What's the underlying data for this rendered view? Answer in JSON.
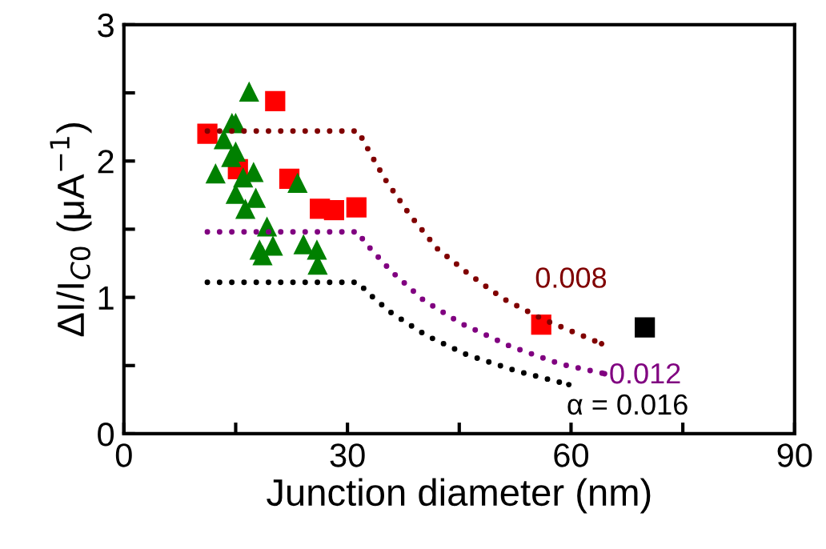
{
  "chart_data": {
    "type": "scatter",
    "xlabel": "Junction diameter (nm)",
    "ylabel": "ΔI/I$_{C0}$ (μA$^{−1}$)",
    "xlim": [
      0,
      90
    ],
    "ylim": [
      0,
      3
    ],
    "xticks": [
      0,
      {
        "value": 15,
        "label": null
      },
      30,
      {
        "value": 45,
        "label": null
      },
      60,
      {
        "value": 75,
        "label": null
      },
      90
    ],
    "yticks": [
      0,
      {
        "value": 0.5,
        "label": null
      },
      1,
      {
        "value": 1.5,
        "label": null
      },
      2,
      {
        "value": 2.5,
        "label": null
      },
      3
    ],
    "grid": false,
    "legend": false,
    "series": [
      {
        "type": "line",
        "name": "0.008",
        "color": "#800000",
        "line_style": "dotted",
        "marker": "none",
        "x": [
          11.2,
          31.5,
          32.1,
          35.0,
          38.3,
          42.0,
          46.3,
          50.9,
          56.2,
          64.1
        ],
        "values": [
          2.22,
          2.22,
          2.15,
          1.87,
          1.61,
          1.36,
          1.17,
          0.99,
          0.84,
          0.66
        ]
      },
      {
        "type": "line",
        "name": "0.012",
        "color": "#800080",
        "line_style": "dotted",
        "marker": "none",
        "x": [
          11.2,
          31.5,
          32.2,
          35.9,
          40.2,
          45.2,
          51.9,
          58.6,
          64.5
        ],
        "values": [
          1.48,
          1.48,
          1.41,
          1.19,
          0.98,
          0.81,
          0.64,
          0.51,
          0.44
        ]
      },
      {
        "type": "line",
        "name": "α = 0.016",
        "color": "#000000",
        "line_style": "dotted",
        "marker": "none",
        "x": [
          11.2,
          31.5,
          32.6,
          35.8,
          40.6,
          46.0,
          52.7,
          59.7
        ],
        "values": [
          1.11,
          1.11,
          1.04,
          0.89,
          0.72,
          0.58,
          0.46,
          0.36
        ]
      },
      {
        "color": "#ff0000",
        "marker": "square",
        "x": [
          11.2,
          20.3,
          15.3,
          22.2,
          26.3,
          28.2,
          31.2,
          56.0
        ],
        "values": [
          2.2,
          2.44,
          1.94,
          1.87,
          1.65,
          1.64,
          1.66,
          0.8
        ]
      },
      {
        "color": "#008000",
        "marker": "triangle",
        "x": [
          16.8,
          14.5,
          15.0,
          13.4,
          15.0,
          14.4,
          12.3,
          17.4,
          16.0,
          23.3,
          15.0,
          17.7,
          16.3,
          19.2,
          18.2,
          20.0,
          18.6,
          24.1,
          25.9,
          26.0
        ],
        "values": [
          2.51,
          2.28,
          2.28,
          2.16,
          2.07,
          2.03,
          1.91,
          1.92,
          1.88,
          1.84,
          1.76,
          1.73,
          1.65,
          1.52,
          1.35,
          1.38,
          1.31,
          1.39,
          1.35,
          1.24
        ]
      },
      {
        "color": "#000000",
        "marker": "square",
        "x": [
          69.9
        ],
        "values": [
          0.78
        ]
      }
    ]
  }
}
